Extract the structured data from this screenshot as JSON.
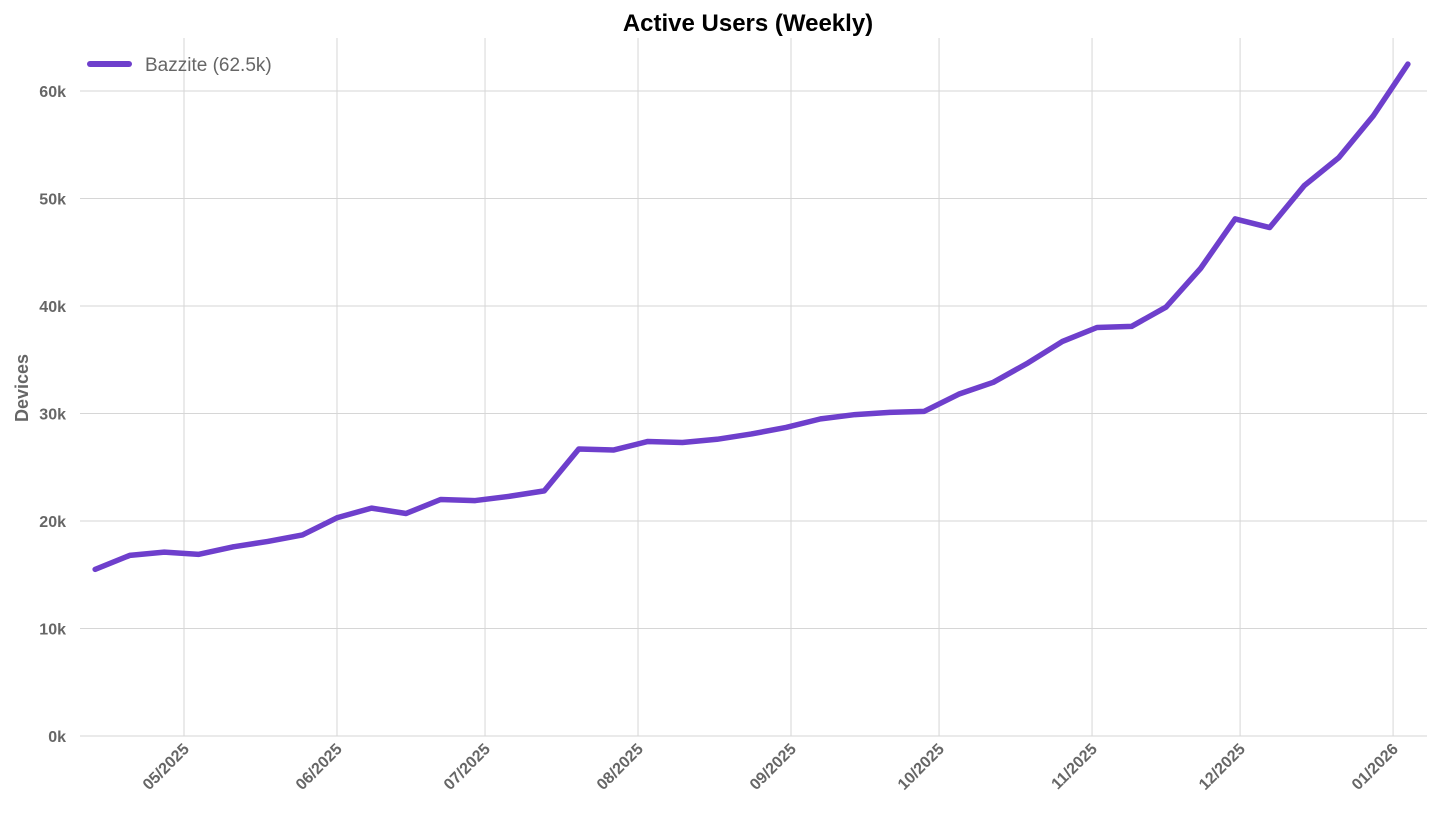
{
  "chart_data": {
    "type": "line",
    "title": "Active Users (Weekly)",
    "xlabel": "",
    "ylabel": "Devices",
    "ylim": [
      0,
      65
    ],
    "y_ticks": [
      0,
      10,
      20,
      30,
      40,
      50,
      60
    ],
    "y_tick_labels": [
      "0k",
      "10k",
      "20k",
      "30k",
      "40k",
      "50k",
      "60k"
    ],
    "x_ticks": [
      "2025-05-01",
      "2025-06-01",
      "2025-07-01",
      "2025-08-01",
      "2025-09-01",
      "2025-10-01",
      "2025-11-01",
      "2025-12-01",
      "2026-01-01"
    ],
    "x_tick_labels": [
      "05/2025",
      "06/2025",
      "07/2025",
      "08/2025",
      "09/2025",
      "10/2025",
      "11/2025",
      "12/2025",
      "01/2026"
    ],
    "grid": true,
    "legend_position": "top-left",
    "series": [
      {
        "name": "Bazzite (62.5k)",
        "color": "#6e3fcc",
        "start_date": "2025-04-13",
        "interval_days": 7,
        "values": [
          15.5,
          16.8,
          17.1,
          16.9,
          17.6,
          18.1,
          18.7,
          20.3,
          21.2,
          20.7,
          22.0,
          21.9,
          22.3,
          22.8,
          26.7,
          26.6,
          27.4,
          27.3,
          27.6,
          28.1,
          28.7,
          29.5,
          29.9,
          30.1,
          30.2,
          31.8,
          32.9,
          34.7,
          36.7,
          38.0,
          38.1,
          39.9,
          43.5,
          48.1,
          47.3,
          51.2,
          53.8,
          57.7,
          62.5
        ]
      }
    ]
  }
}
